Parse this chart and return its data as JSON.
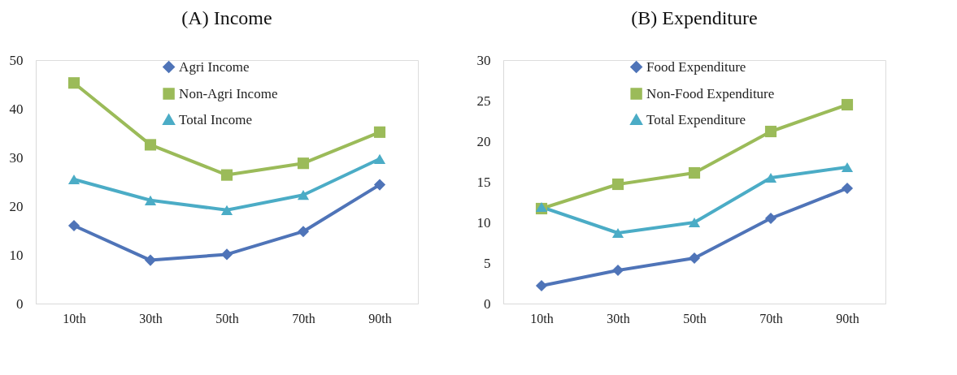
{
  "chart_data": [
    {
      "type": "line",
      "title": "(A) Income",
      "categories": [
        "10th",
        "30th",
        "50th",
        "70th",
        "90th"
      ],
      "ylim": [
        0,
        50
      ],
      "yticks": [
        0,
        10,
        20,
        30,
        40,
        50
      ],
      "grid": false,
      "legend": "top",
      "series": [
        {
          "name": "Agri Income",
          "color": "#4f74b8",
          "marker": "diamond",
          "values": [
            16.0,
            8.9,
            10.1,
            14.8,
            24.4
          ]
        },
        {
          "name": "Non-Agri Income",
          "color": "#9bbb59",
          "marker": "square",
          "values": [
            45.3,
            32.6,
            26.4,
            28.8,
            35.2
          ]
        },
        {
          "name": "Total Income",
          "color": "#4bacc6",
          "marker": "triangle",
          "values": [
            25.5,
            21.2,
            19.2,
            22.3,
            29.7
          ]
        }
      ]
    },
    {
      "type": "line",
      "title": "(B) Expenditure",
      "categories": [
        "10th",
        "30th",
        "50th",
        "70th",
        "90th"
      ],
      "ylim": [
        0,
        30
      ],
      "yticks": [
        0,
        5,
        10,
        15,
        20,
        25,
        30
      ],
      "grid": false,
      "legend": "top",
      "series": [
        {
          "name": "Food Expenditure",
          "color": "#4f74b8",
          "marker": "diamond",
          "values": [
            2.2,
            4.1,
            5.6,
            10.5,
            14.2
          ]
        },
        {
          "name": "Non-Food Expenditure",
          "color": "#9bbb59",
          "marker": "square",
          "values": [
            11.7,
            14.7,
            16.1,
            21.2,
            24.5
          ]
        },
        {
          "name": "Total Expenditure",
          "color": "#4bacc6",
          "marker": "triangle",
          "values": [
            11.9,
            8.7,
            10.0,
            15.5,
            16.8
          ]
        }
      ]
    }
  ]
}
